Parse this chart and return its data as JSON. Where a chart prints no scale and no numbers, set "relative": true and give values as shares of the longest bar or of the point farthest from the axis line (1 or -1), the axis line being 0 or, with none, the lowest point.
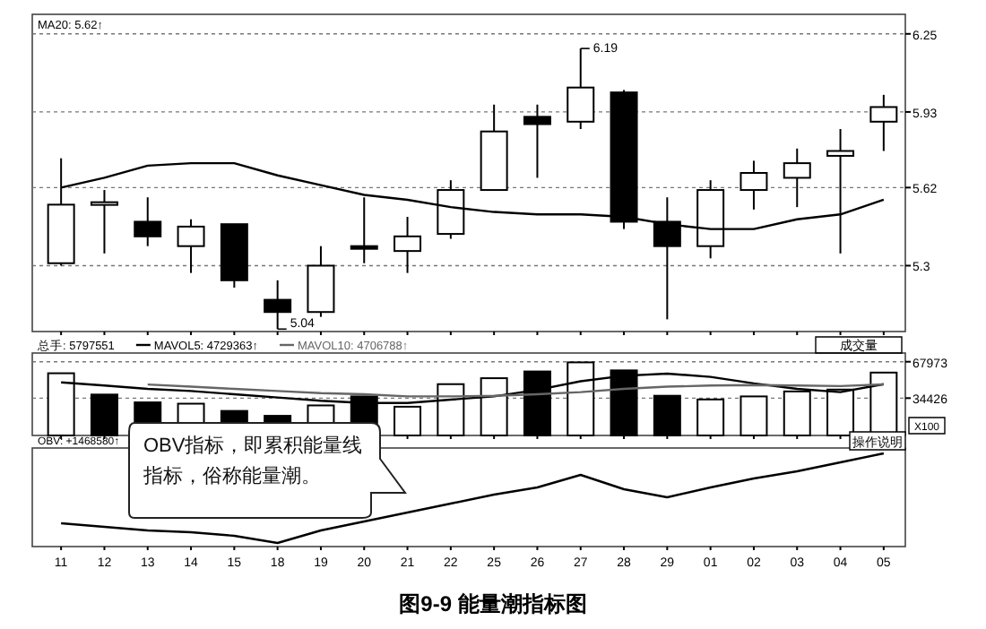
{
  "chart_data": [
    {
      "type": "candlestick",
      "categories": [
        "11",
        "12",
        "13",
        "14",
        "15",
        "18",
        "19",
        "20",
        "21",
        "22",
        "25",
        "26",
        "27",
        "28",
        "29",
        "01",
        "02",
        "03",
        "04",
        "05"
      ],
      "ohlc": [
        [
          5.31,
          5.74,
          5.3,
          5.55
        ],
        [
          5.55,
          5.61,
          5.35,
          5.56
        ],
        [
          5.48,
          5.58,
          5.38,
          5.42
        ],
        [
          5.38,
          5.49,
          5.27,
          5.46
        ],
        [
          5.47,
          5.47,
          5.21,
          5.24
        ],
        [
          5.16,
          5.24,
          5.04,
          5.11
        ],
        [
          5.11,
          5.38,
          5.09,
          5.3
        ],
        [
          5.38,
          5.58,
          5.31,
          5.37
        ],
        [
          5.36,
          5.5,
          5.27,
          5.42
        ],
        [
          5.43,
          5.65,
          5.41,
          5.61
        ],
        [
          5.61,
          5.96,
          5.61,
          5.85
        ],
        [
          5.91,
          5.96,
          5.66,
          5.88
        ],
        [
          5.89,
          6.19,
          5.86,
          6.03
        ],
        [
          6.01,
          6.02,
          5.45,
          5.48
        ],
        [
          5.48,
          5.58,
          5.08,
          5.38
        ],
        [
          5.38,
          5.65,
          5.33,
          5.61
        ],
        [
          5.61,
          5.73,
          5.53,
          5.68
        ],
        [
          5.66,
          5.78,
          5.54,
          5.72
        ],
        [
          5.75,
          5.86,
          5.35,
          5.77
        ],
        [
          5.89,
          6.0,
          5.77,
          5.95
        ]
      ],
      "series": [
        {
          "name": "MA20: 5.62↑",
          "type": "line",
          "color": "#000000",
          "values": [
            5.62,
            5.66,
            5.71,
            5.72,
            5.72,
            5.67,
            5.63,
            5.59,
            5.57,
            5.54,
            5.52,
            5.51,
            5.51,
            5.5,
            5.47,
            5.45,
            5.45,
            5.49,
            5.51,
            5.57
          ]
        }
      ],
      "ylim": [
        5.03,
        6.33
      ],
      "yticks": [
        6.25,
        5.93,
        5.62,
        5.3
      ],
      "grid": "y",
      "legend": "top left",
      "tick_labels": "y",
      "annotations": [
        {
          "text": "6.19",
          "x": "27",
          "y": 6.19
        },
        {
          "text": "5.04",
          "x": "18",
          "y": 5.04
        }
      ]
    },
    {
      "type": "bar",
      "categories": [
        "11",
        "12",
        "13",
        "14",
        "15",
        "18",
        "19",
        "20",
        "21",
        "22",
        "25",
        "26",
        "27",
        "28",
        "29",
        "01",
        "02",
        "03",
        "04",
        "05"
      ],
      "series": [
        {
          "name": "总手: 5797551",
          "colors": [
            "#ffffff",
            "#000000",
            "#000000",
            "#ffffff",
            "#000000",
            "#000000",
            "#ffffff",
            "#000000",
            "#ffffff",
            "#ffffff",
            "#ffffff",
            "#000000",
            "#ffffff",
            "#000000",
            "#000000",
            "#ffffff",
            "#ffffff",
            "#ffffff",
            "#ffffff",
            "#ffffff"
          ],
          "values": [
            57350,
            37700,
            30500,
            29300,
            22600,
            18100,
            27700,
            36000,
            26500,
            47300,
            52800,
            59000,
            67400,
            60000,
            36600,
            33200,
            36000,
            40600,
            42300,
            57975
          ]
        },
        {
          "name": "MAVOL5: 4729363↑",
          "type": "line",
          "color": "#000000",
          "values": [
            49000,
            46000,
            43000,
            41000,
            38000,
            35000,
            32000,
            30000,
            30000,
            33000,
            36000,
            42000,
            50000,
            55000,
            57000,
            54000,
            48000,
            43000,
            40000,
            47294
          ]
        },
        {
          "name": "MAVOL10: 4706788↑",
          "type": "line",
          "color": "#666666",
          "values": [
            null,
            null,
            47000,
            45000,
            43000,
            41000,
            39000,
            38000,
            36000,
            36000,
            36500,
            38000,
            40000,
            43000,
            45000,
            46000,
            46500,
            46000,
            45500,
            47068
          ]
        }
      ],
      "ylim": [
        0,
        76000
      ],
      "yticks": [
        67973,
        34426
      ],
      "grid": "y",
      "legend": "top left",
      "tick_labels": "y",
      "annotations": [
        "成交量",
        "X100"
      ]
    },
    {
      "type": "line",
      "relative": true,
      "categories": [
        "11",
        "12",
        "13",
        "14",
        "15",
        "18",
        "19",
        "20",
        "21",
        "22",
        "25",
        "26",
        "27",
        "28",
        "29",
        "01",
        "02",
        "03",
        "04",
        "05"
      ],
      "series": [
        {
          "name": "OBV: +1468580↑",
          "color": "#000000",
          "values": [
            0.22,
            0.18,
            0.14,
            0.12,
            0.08,
            0,
            0.14,
            0.24,
            0.34,
            0.44,
            0.54,
            0.62,
            0.76,
            0.6,
            0.51,
            0.62,
            0.72,
            0.8,
            0.9,
            1
          ]
        }
      ],
      "legend": "top left",
      "tick_labels": "x",
      "annotations": [
        "OBV指标，即累积能量线指标，俗称能量潮。",
        "操作说明",
        "图9-9 能量潮指标图"
      ]
    }
  ]
}
